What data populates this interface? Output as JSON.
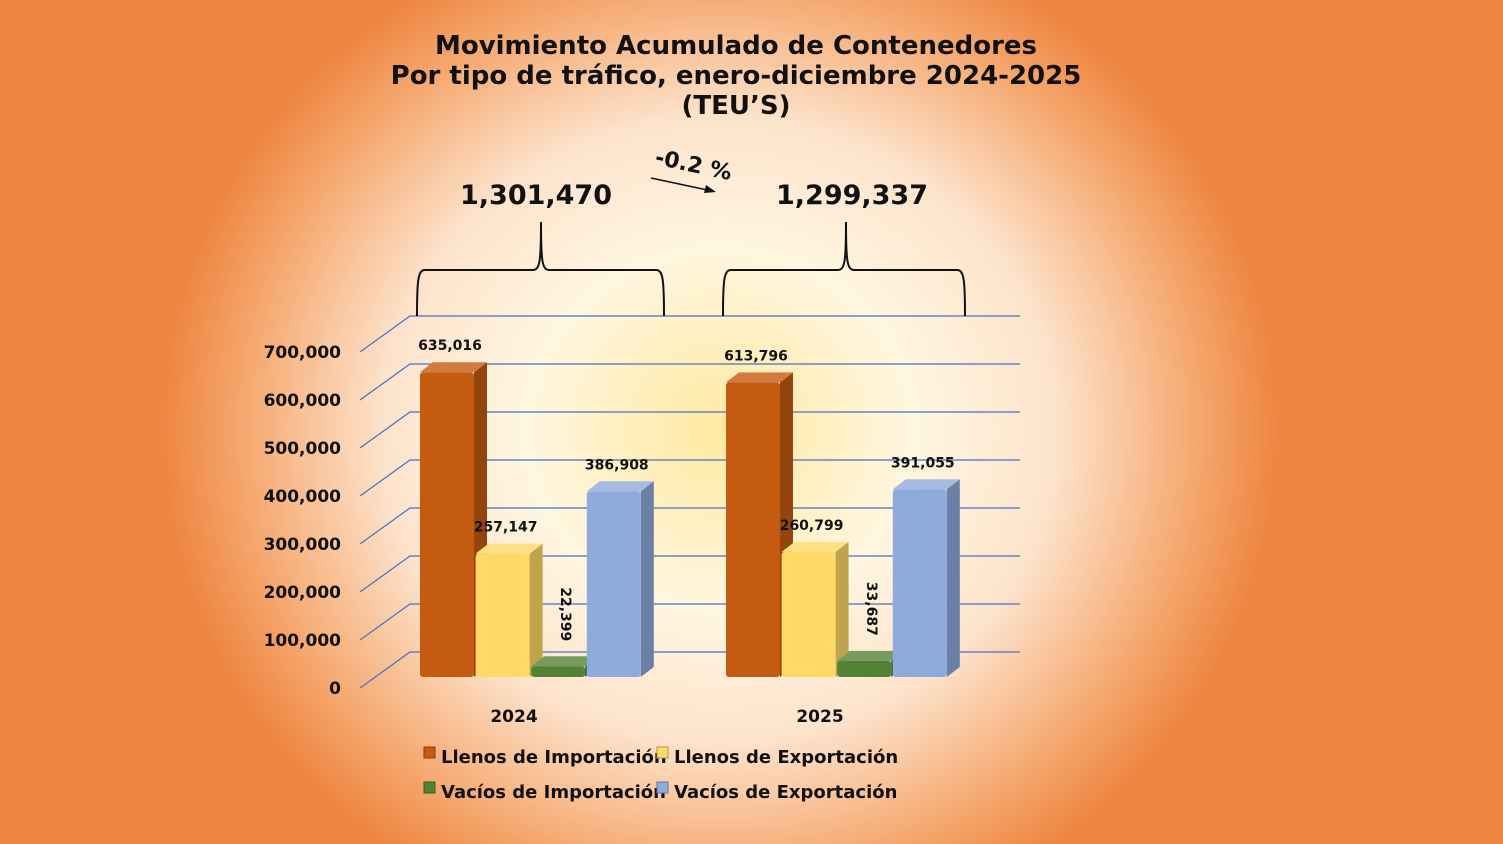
{
  "chart_data": {
    "type": "bar",
    "title": [
      "Movimiento Acumulado de Contenedores",
      "Por tipo de tráfico, enero-diciembre 2024-2025",
      "(TEU’S)"
    ],
    "categories": [
      "2024",
      "2025"
    ],
    "series": [
      {
        "name": "Llenos de Importación",
        "values": [
          635016,
          613796
        ],
        "color": "#c55a11"
      },
      {
        "name": "Llenos de Exportación",
        "values": [
          257147,
          260799
        ],
        "color": "#ffd966"
      },
      {
        "name": "Vacíos de Importación",
        "values": [
          22399,
          33687
        ],
        "color": "#548235"
      },
      {
        "name": "Vacíos de Exportación",
        "values": [
          386908,
          391055
        ],
        "color": "#8faadc"
      }
    ],
    "data_labels": [
      [
        "635,016",
        "257,147",
        "22,399",
        "386,908"
      ],
      [
        "613,796",
        "260,799",
        "33,687",
        "391,055"
      ]
    ],
    "totals": [
      "1,301,470",
      "1,299,337"
    ],
    "change": "-0.2 %",
    "ylim": [
      0,
      700000
    ],
    "yticks": [
      "0",
      "100,000",
      "200,000",
      "300,000",
      "400,000",
      "500,000",
      "600,000",
      "700,000"
    ],
    "grid": true,
    "legend": "bottom"
  }
}
